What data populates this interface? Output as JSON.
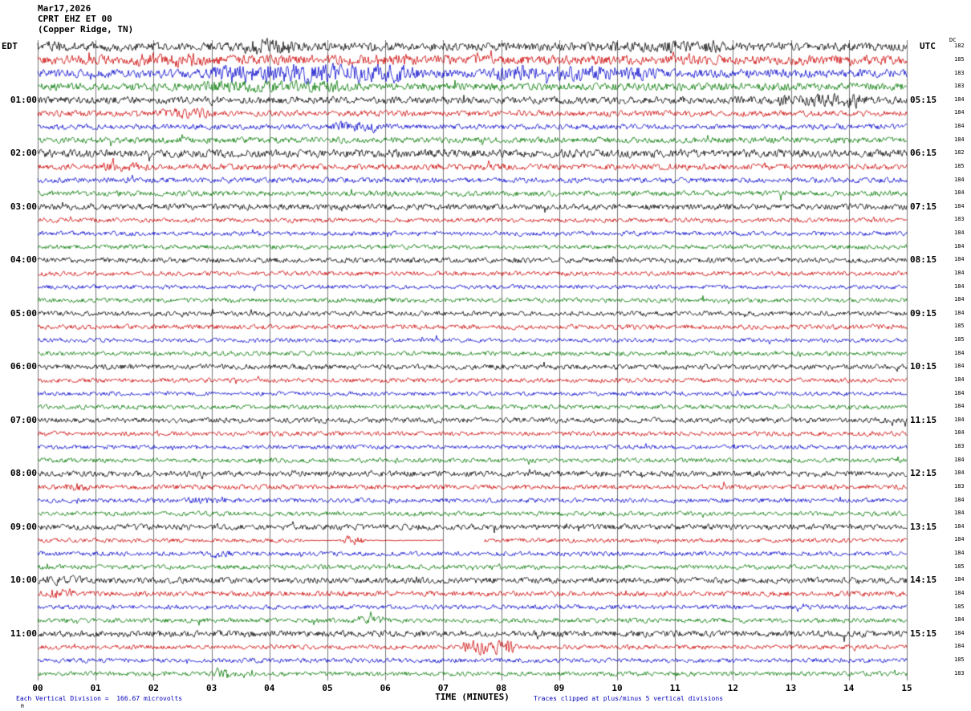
{
  "header": {
    "date": "Mar17,2026",
    "station": "CPRT EHZ ET 00",
    "location": "(Copper Ridge, TN)"
  },
  "axes": {
    "left_tz": "EDT",
    "right_tz": "UTC",
    "dc_label": "DC",
    "x_label": "TIME (MINUTES)",
    "x_ticks": [
      "00",
      "01",
      "02",
      "03",
      "04",
      "05",
      "06",
      "07",
      "08",
      "09",
      "10",
      "11",
      "12",
      "13",
      "14",
      "15"
    ]
  },
  "footer": {
    "left": "Each Vertical Division =  166.67 microvolts",
    "right": "Traces clipped at plus/minus 5 vertical divisions",
    "corner": "M"
  },
  "colors": {
    "black": "#000000",
    "red": "#cc0000",
    "blue": "#0000cc",
    "green": "#007700",
    "grid": "#777777",
    "note_blue": "#0000bb"
  },
  "chart_data": {
    "type": "line",
    "kind": "seismogram-helicorder",
    "title": "CPRT EHZ ET 00 (Copper Ridge, TN) Mar17,2026",
    "xlabel": "TIME (MINUTES)",
    "x_range_minutes": [
      0,
      15
    ],
    "minutes_per_line": 15,
    "lines_per_hour": 4,
    "vertical_division_microvolts": 166.67,
    "clip_divisions": 5,
    "rows": [
      {
        "c": "black",
        "dc": 182,
        "a": 4.5,
        "l": "",
        "r": "",
        "ev": [
          [
            "b",
            0.1,
            0.5,
            7
          ],
          [
            "b",
            3.4,
            4.6,
            9
          ],
          [
            "b",
            9.3,
            12.3,
            6.5
          ]
        ]
      },
      {
        "c": "red",
        "dc": 185,
        "a": 5.0,
        "l": "",
        "r": "",
        "ev": [
          [
            "b",
            1.4,
            3.2,
            7.5
          ],
          [
            "b",
            5.3,
            6.6,
            6.5
          ],
          [
            "b",
            13.4,
            14.2,
            6
          ]
        ]
      },
      {
        "c": "blue",
        "dc": 183,
        "a": 4.5,
        "l": "",
        "r": "",
        "ev": [
          [
            "b",
            2.4,
            7.2,
            10
          ],
          [
            "b",
            7.2,
            11.2,
            8
          ]
        ]
      },
      {
        "c": "green",
        "dc": 183,
        "a": 4.0,
        "l": "",
        "r": "",
        "ev": [
          [
            "b",
            2.0,
            6.0,
            6.5
          ]
        ]
      },
      {
        "c": "black",
        "dc": 184,
        "a": 3.8,
        "l": "01:00",
        "r": "05:15",
        "ev": [
          [
            "b",
            12.4,
            14.6,
            7
          ]
        ]
      },
      {
        "c": "red",
        "dc": 184,
        "a": 3.2,
        "l": "",
        "r": "",
        "ev": [
          [
            "b",
            1.9,
            3.1,
            5.5
          ]
        ]
      },
      {
        "c": "blue",
        "dc": 184,
        "a": 2.8,
        "l": "",
        "r": "",
        "ev": [
          [
            "b",
            4.9,
            6.2,
            5.5
          ]
        ]
      },
      {
        "c": "green",
        "dc": 184,
        "a": 3.2,
        "l": "",
        "r": "",
        "ev": []
      },
      {
        "c": "black",
        "dc": 182,
        "a": 4.2,
        "l": "02:00",
        "r": "06:15",
        "ev": []
      },
      {
        "c": "red",
        "dc": 185,
        "a": 3.2,
        "l": "",
        "r": "",
        "ev": [
          [
            "b",
            0.9,
            2.1,
            5
          ]
        ]
      },
      {
        "c": "blue",
        "dc": 184,
        "a": 2.8,
        "l": "",
        "r": "",
        "ev": []
      },
      {
        "c": "green",
        "dc": 184,
        "a": 2.8,
        "l": "",
        "r": "",
        "ev": []
      },
      {
        "c": "black",
        "dc": 184,
        "a": 3.2,
        "l": "03:00",
        "r": "07:15",
        "ev": []
      },
      {
        "c": "red",
        "dc": 183,
        "a": 2.4,
        "l": "",
        "r": "",
        "ev": []
      },
      {
        "c": "blue",
        "dc": 184,
        "a": 2.4,
        "l": "",
        "r": "",
        "ev": []
      },
      {
        "c": "green",
        "dc": 184,
        "a": 2.4,
        "l": "",
        "r": "",
        "ev": []
      },
      {
        "c": "black",
        "dc": 184,
        "a": 2.8,
        "l": "04:00",
        "r": "08:15",
        "ev": []
      },
      {
        "c": "red",
        "dc": 184,
        "a": 2.4,
        "l": "",
        "r": "",
        "ev": []
      },
      {
        "c": "blue",
        "dc": 184,
        "a": 2.2,
        "l": "",
        "r": "",
        "ev": []
      },
      {
        "c": "green",
        "dc": 184,
        "a": 2.4,
        "l": "",
        "r": "",
        "ev": []
      },
      {
        "c": "black",
        "dc": 184,
        "a": 2.6,
        "l": "05:00",
        "r": "09:15",
        "ev": []
      },
      {
        "c": "red",
        "dc": 185,
        "a": 2.6,
        "l": "",
        "r": "",
        "ev": []
      },
      {
        "c": "blue",
        "dc": 185,
        "a": 2.2,
        "l": "",
        "r": "",
        "ev": []
      },
      {
        "c": "green",
        "dc": 184,
        "a": 2.4,
        "l": "",
        "r": "",
        "ev": []
      },
      {
        "c": "black",
        "dc": 184,
        "a": 2.8,
        "l": "06:00",
        "r": "10:15",
        "ev": []
      },
      {
        "c": "red",
        "dc": 184,
        "a": 2.4,
        "l": "",
        "r": "",
        "ev": []
      },
      {
        "c": "blue",
        "dc": 184,
        "a": 2.2,
        "l": "",
        "r": "",
        "ev": []
      },
      {
        "c": "green",
        "dc": 184,
        "a": 2.4,
        "l": "",
        "r": "",
        "ev": []
      },
      {
        "c": "black",
        "dc": 184,
        "a": 2.8,
        "l": "07:00",
        "r": "11:15",
        "ev": []
      },
      {
        "c": "red",
        "dc": 184,
        "a": 2.4,
        "l": "",
        "r": "",
        "ev": []
      },
      {
        "c": "blue",
        "dc": 183,
        "a": 2.2,
        "l": "",
        "r": "",
        "ev": []
      },
      {
        "c": "green",
        "dc": 184,
        "a": 2.4,
        "l": "",
        "r": "",
        "ev": []
      },
      {
        "c": "black",
        "dc": 184,
        "a": 3.0,
        "l": "08:00",
        "r": "12:15",
        "ev": []
      },
      {
        "c": "red",
        "dc": 183,
        "a": 2.6,
        "l": "",
        "r": "",
        "ev": [
          [
            "b",
            0.4,
            1.0,
            4.5
          ]
        ]
      },
      {
        "c": "blue",
        "dc": 184,
        "a": 2.4,
        "l": "",
        "r": "",
        "ev": [
          [
            "b",
            2.4,
            3.4,
            4
          ]
        ]
      },
      {
        "c": "green",
        "dc": 184,
        "a": 2.4,
        "l": "",
        "r": "",
        "ev": []
      },
      {
        "c": "black",
        "dc": 184,
        "a": 3.0,
        "l": "09:00",
        "r": "13:15",
        "ev": []
      },
      {
        "c": "red",
        "dc": 184,
        "a": 2.2,
        "l": "",
        "r": "",
        "ev": [
          [
            "f",
            4.6,
            5.2
          ],
          [
            "b",
            5.2,
            5.7,
            4.5
          ],
          [
            "f",
            5.7,
            7.0
          ],
          [
            "g",
            7.0,
            7.7
          ]
        ]
      },
      {
        "c": "blue",
        "dc": 184,
        "a": 2.4,
        "l": "",
        "r": "",
        "ev": [
          [
            "b",
            2.9,
            3.4,
            4.5
          ]
        ]
      },
      {
        "c": "green",
        "dc": 185,
        "a": 2.4,
        "l": "",
        "r": "",
        "ev": []
      },
      {
        "c": "black",
        "dc": 184,
        "a": 3.2,
        "l": "10:00",
        "r": "14:15",
        "ev": [
          [
            "b",
            0.0,
            0.9,
            5
          ]
        ]
      },
      {
        "c": "red",
        "dc": 184,
        "a": 2.8,
        "l": "",
        "r": "",
        "ev": [
          [
            "b",
            0.1,
            0.7,
            5.5
          ]
        ]
      },
      {
        "c": "blue",
        "dc": 185,
        "a": 2.4,
        "l": "",
        "r": "",
        "ev": []
      },
      {
        "c": "green",
        "dc": 184,
        "a": 2.4,
        "l": "",
        "r": "",
        "ev": [
          [
            "b",
            5.4,
            6.1,
            4.5
          ]
        ]
      },
      {
        "c": "black",
        "dc": 184,
        "a": 3.4,
        "l": "11:00",
        "r": "15:15",
        "ev": []
      },
      {
        "c": "red",
        "dc": 184,
        "a": 2.4,
        "l": "",
        "r": "",
        "ev": [
          [
            "b",
            7.2,
            8.4,
            8
          ]
        ]
      },
      {
        "c": "blue",
        "dc": 185,
        "a": 2.4,
        "l": "",
        "r": "",
        "ev": []
      },
      {
        "c": "green",
        "dc": 183,
        "a": 2.4,
        "l": "",
        "r": "",
        "ev": [
          [
            "b",
            3.05,
            3.35,
            6.5
          ]
        ]
      }
    ]
  }
}
